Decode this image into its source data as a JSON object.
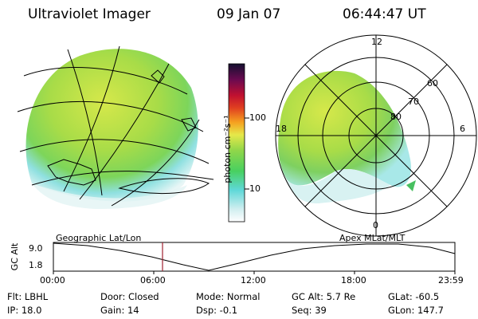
{
  "header": {
    "title": "Ultraviolet Imager",
    "date": "09 Jan 07",
    "time": "06:44:47 UT"
  },
  "colors": {
    "aurora_green": "#8fd64a",
    "aurora_yellow": "#d6e84a",
    "aurora_cyan": "#6fd9d6",
    "background": "#ffffff"
  },
  "colorbar": {
    "unit_label": "photon cm⁻²s⁻¹",
    "tick_100": "100",
    "tick_10": "10"
  },
  "polar_plot": {
    "mlt_labels": [
      "12",
      "18",
      "6",
      "0"
    ],
    "mlat_labels": [
      "60",
      "70",
      "80"
    ]
  },
  "altitude_plot": {
    "left_title": "Geographic Lat/Lon",
    "right_title": "Apex MLat/MLT",
    "ylabel": "GC Alt",
    "y_ticks": [
      "9.0",
      "1.8"
    ],
    "time_ticks": [
      "00:00",
      "06:00",
      "12:00",
      "18:00",
      "23:59"
    ]
  },
  "status": {
    "flt": "Flt: LBHL",
    "ip": "IP: 18.0",
    "door": "Door: Closed",
    "gain": "Gain: 14",
    "mode": "Mode: Normal",
    "dsp": "Dsp:    -0.1",
    "gc_alt": "GC Alt: 5.7 Re",
    "seq": "Seq: 39",
    "glat": "GLat:  -60.5",
    "glon": "GLon: 147.7"
  }
}
